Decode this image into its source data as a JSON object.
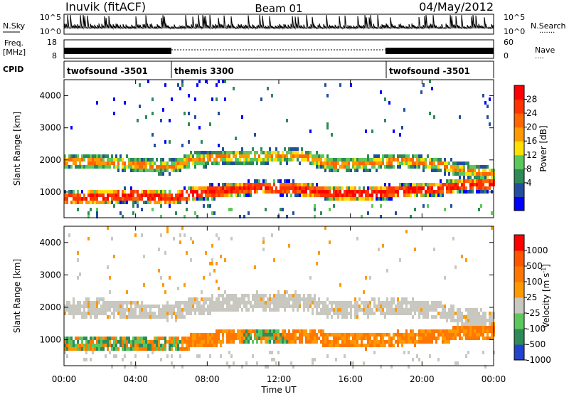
{
  "header": {
    "title": "Inuvik (fitACF)",
    "beam": "Beam 01",
    "date": "04/May/2012"
  },
  "sidebar_labels": {
    "nsky": "N.Sky",
    "freq_line1": "Freq.",
    "freq_line2": "[MHz]",
    "cpid": "CPID",
    "nsearch": "N.Search",
    "nave": "Nave",
    "nsearch_dots": "·······",
    "nave_dots": "····"
  },
  "noise_panel": {
    "left_top": "10^5",
    "left_bottom": "10^0",
    "right_top": "10^5",
    "right_bottom": "10^0"
  },
  "freq_panel": {
    "left_top": "18",
    "left_bottom": "8",
    "right_top": "60",
    "right_bottom": "0"
  },
  "cpid_segments": [
    {
      "label": "twofsound -3501",
      "start_hour": 0
    },
    {
      "label": "themis 3300",
      "start_hour": 6
    },
    {
      "label": "twofsound -3501",
      "start_hour": 18
    }
  ],
  "time_axis": {
    "label": "Time UT",
    "ticks": [
      "00:00",
      "04:00",
      "08:00",
      "12:00",
      "16:00",
      "20:00",
      "00:00"
    ]
  },
  "chart_data": [
    {
      "type": "heatmap",
      "title": "Power",
      "xlabel": "Time UT",
      "ylabel": "Slant Range [km]",
      "xlim": [
        0,
        24
      ],
      "ylim": [
        200,
        4500
      ],
      "yticks": [
        1000,
        2000,
        3000,
        4000
      ],
      "colorbar": {
        "label": "Power [dB]",
        "ticks": [
          "28",
          "24",
          "20",
          "16",
          "12",
          "8",
          "4"
        ],
        "colors": [
          "#0000ff",
          "#234ea0",
          "#2e8b57",
          "#5cc85c",
          "#ffe000",
          "#ff9900",
          "#ff6600",
          "#ff3300",
          "#ff0000"
        ]
      },
      "bands": [
        {
          "name": "upper echo band",
          "x": [
            0,
            2,
            4,
            6,
            7,
            9,
            11,
            13,
            15,
            17,
            19,
            21,
            22,
            24
          ],
          "y": [
            2000,
            2000,
            1900,
            1850,
            2050,
            2150,
            2150,
            2200,
            1900,
            1950,
            2050,
            1900,
            1750,
            1600
          ]
        },
        {
          "name": "lower echo band",
          "x": [
            0,
            2,
            4,
            6,
            7,
            9,
            11,
            13,
            15,
            17,
            19,
            21,
            22,
            24
          ],
          "y": [
            850,
            900,
            950,
            850,
            1000,
            1100,
            1200,
            1150,
            1000,
            1000,
            1100,
            1150,
            1250,
            1300
          ]
        }
      ]
    },
    {
      "type": "heatmap",
      "title": "Velocity",
      "xlabel": "Time UT",
      "ylabel": "Slant Range [km]",
      "xlim": [
        0,
        24
      ],
      "ylim": [
        200,
        4500
      ],
      "yticks": [
        1000,
        2000,
        3000,
        4000
      ],
      "colorbar": {
        "label": "Velocity [m s-1]",
        "unit_main": "Velocity [m s",
        "unit_exp": "-1",
        "unit_close": "]",
        "ticks": [
          "1000",
          "500",
          "100",
          "25",
          "-25",
          "-100",
          "-500",
          "-1000"
        ],
        "colors": [
          "#2244cc",
          "#2e8b57",
          "#5cc85c",
          "#c8c8c0",
          "#ff9900",
          "#ff7700",
          "#ff5500",
          "#ff0000"
        ]
      },
      "bands": [
        {
          "name": "ground scatter band",
          "x": [
            0,
            2,
            4,
            6,
            7,
            9,
            11,
            13,
            15,
            17,
            19,
            21,
            22,
            24
          ],
          "y": [
            2000,
            2050,
            1950,
            1900,
            2050,
            2200,
            2250,
            2250,
            2000,
            2050,
            2050,
            1950,
            1800,
            1650
          ]
        },
        {
          "name": "ionospheric band",
          "x": [
            0,
            2,
            4,
            6,
            7,
            9,
            11,
            13,
            15,
            17,
            19,
            21,
            22,
            24
          ],
          "y": [
            900,
            950,
            950,
            900,
            1000,
            1150,
            1200,
            1150,
            1050,
            1000,
            1100,
            1150,
            1250,
            1300
          ]
        }
      ]
    }
  ]
}
